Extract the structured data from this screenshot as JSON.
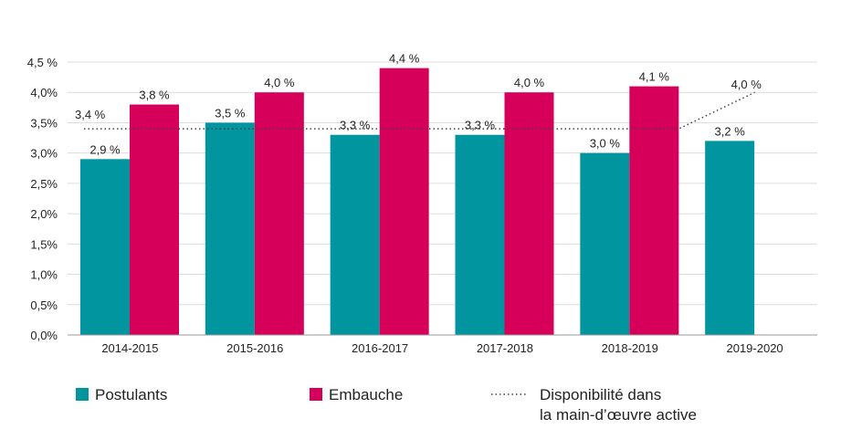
{
  "chart_data": {
    "type": "bar",
    "categories": [
      "2014-2015",
      "2015-2016",
      "2016-2017",
      "2017-2018",
      "2018-2019",
      "2019-2020"
    ],
    "y_ticks": [
      "0,0%",
      "0,5%",
      "1,0%",
      "1,5%",
      "2,0%",
      "2,5%",
      "3,0%",
      "3,5%",
      "4,0%",
      "4,5 %"
    ],
    "ylim": [
      0,
      4.5
    ],
    "grid": true,
    "legend_position": "bottom",
    "series": [
      {
        "name": "Postulants",
        "color": "#00959f",
        "values": [
          2.9,
          3.5,
          3.3,
          3.3,
          3.0,
          3.2
        ],
        "labels": [
          "2,9 %",
          "3,5 %",
          "3,3 %",
          "3,3 %",
          "3,0 %",
          "3,2 %"
        ]
      },
      {
        "name": "Embauche",
        "color": "#d6005a",
        "values": [
          3.8,
          4.0,
          4.4,
          4.0,
          4.1,
          null
        ],
        "labels": [
          "3,8 %",
          "4,0 %",
          "4,4 %",
          "4,0 %",
          "4,1 %",
          ""
        ]
      }
    ],
    "line_series": {
      "name_line1": "Disponibilité dans",
      "name_line2": "la main-d’œuvre active",
      "color": "#444444",
      "style": "dotted",
      "values": [
        3.4,
        3.4,
        3.4,
        3.4,
        3.4,
        4.0
      ],
      "labels": [
        "3,4 %",
        "",
        "",
        "",
        "",
        "4,0 %"
      ]
    }
  }
}
